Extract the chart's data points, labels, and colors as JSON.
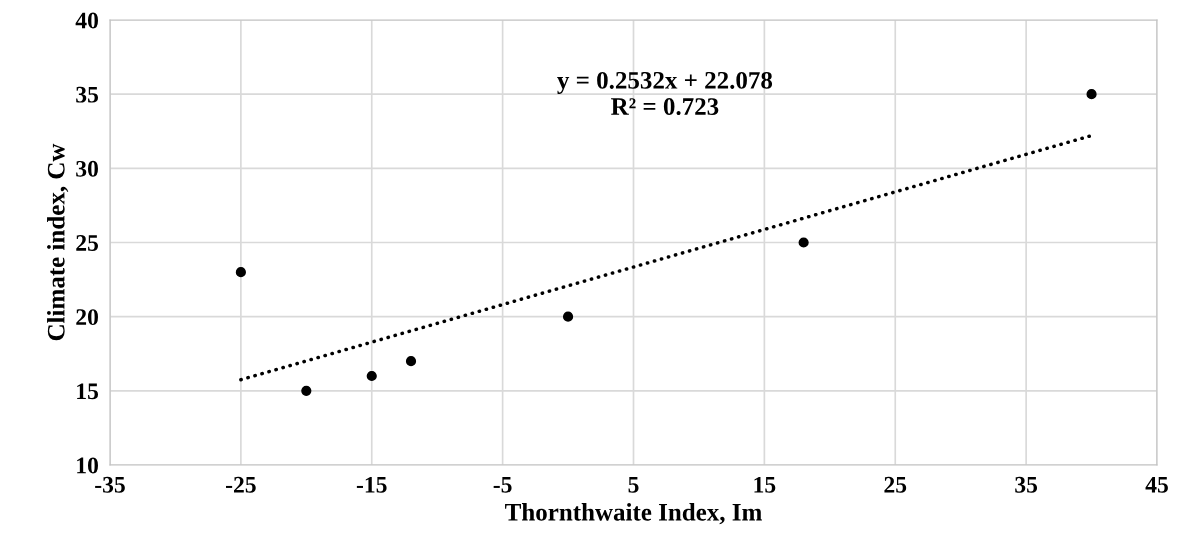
{
  "chart_data": {
    "type": "scatter",
    "xlabel": "Thornthwaite Index, Im",
    "ylabel": "Climate index, Cw",
    "x": [
      -25,
      -20,
      -15,
      -12,
      0,
      18,
      40
    ],
    "series": [
      {
        "color": "#000000",
        "marker": "circle",
        "values": [
          23,
          15,
          16,
          17,
          20,
          25,
          35
        ]
      },
      {
        "type": "line",
        "color": "#000000",
        "line_style": "dotted",
        "x": [
          -25,
          40
        ],
        "values": [
          15.75,
          32.21
        ]
      }
    ],
    "annotations": [
      "y = 0.2532x + 22.078\nR² = 0.723"
    ],
    "xlim": [
      -35,
      45
    ],
    "xticks": [
      -35,
      -25,
      -15,
      -5,
      5,
      15,
      25,
      35,
      45
    ],
    "ylim": [
      10,
      40
    ],
    "yticks": [
      10,
      15,
      20,
      25,
      30,
      35,
      40
    ],
    "grid": true,
    "legend": false
  }
}
